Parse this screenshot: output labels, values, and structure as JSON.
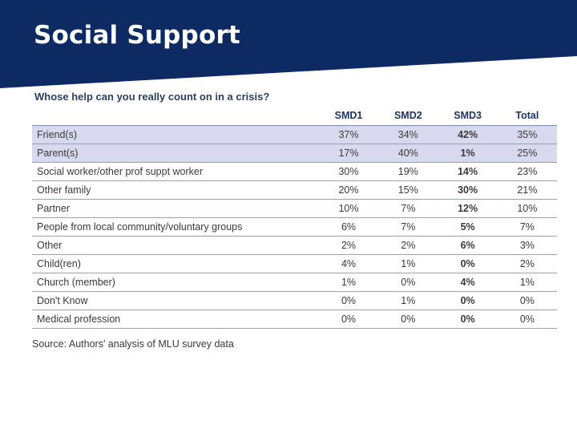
{
  "slide": {
    "title": "Social Support"
  },
  "table": {
    "question": "Whose help can you really count on in a crisis?",
    "columns": [
      "",
      "SMD1",
      "SMD2",
      "SMD3",
      "Total"
    ],
    "rows": [
      {
        "label": "Friend(s)",
        "values": [
          "37%",
          "34%",
          "42%",
          "35%"
        ],
        "highlight": true
      },
      {
        "label": "Parent(s)",
        "values": [
          "17%",
          "40%",
          "1%",
          "25%"
        ],
        "highlight": true
      },
      {
        "label": "Social worker/other prof suppt worker",
        "values": [
          "30%",
          "19%",
          "14%",
          "23%"
        ],
        "highlight": false
      },
      {
        "label": "Other family",
        "values": [
          "20%",
          "15%",
          "30%",
          "21%"
        ],
        "highlight": false
      },
      {
        "label": "Partner",
        "values": [
          "10%",
          "7%",
          "12%",
          "10%"
        ],
        "highlight": false
      },
      {
        "label": "People from local community/voluntary groups",
        "values": [
          "6%",
          "7%",
          "5%",
          "7%"
        ],
        "highlight": false
      },
      {
        "label": "Other",
        "values": [
          "2%",
          "2%",
          "6%",
          "3%"
        ],
        "highlight": false
      },
      {
        "label": "Child(ren)",
        "values": [
          "4%",
          "1%",
          "0%",
          "2%"
        ],
        "highlight": false
      },
      {
        "label": "Church (member)",
        "values": [
          "1%",
          "0%",
          "4%",
          "1%"
        ],
        "highlight": false
      },
      {
        "label": "Don't Know",
        "values": [
          "0%",
          "1%",
          "0%",
          "0%"
        ],
        "highlight": false
      },
      {
        "label": "Medical profession",
        "values": [
          "0%",
          "0%",
          "0%",
          "0%"
        ],
        "highlight": false
      }
    ],
    "source": "Source: Authors' analysis of MLU survey data"
  },
  "colors": {
    "banner": "#0d2a63",
    "highlight_row": "#d8d9ef",
    "header_text": "#1f3461"
  }
}
